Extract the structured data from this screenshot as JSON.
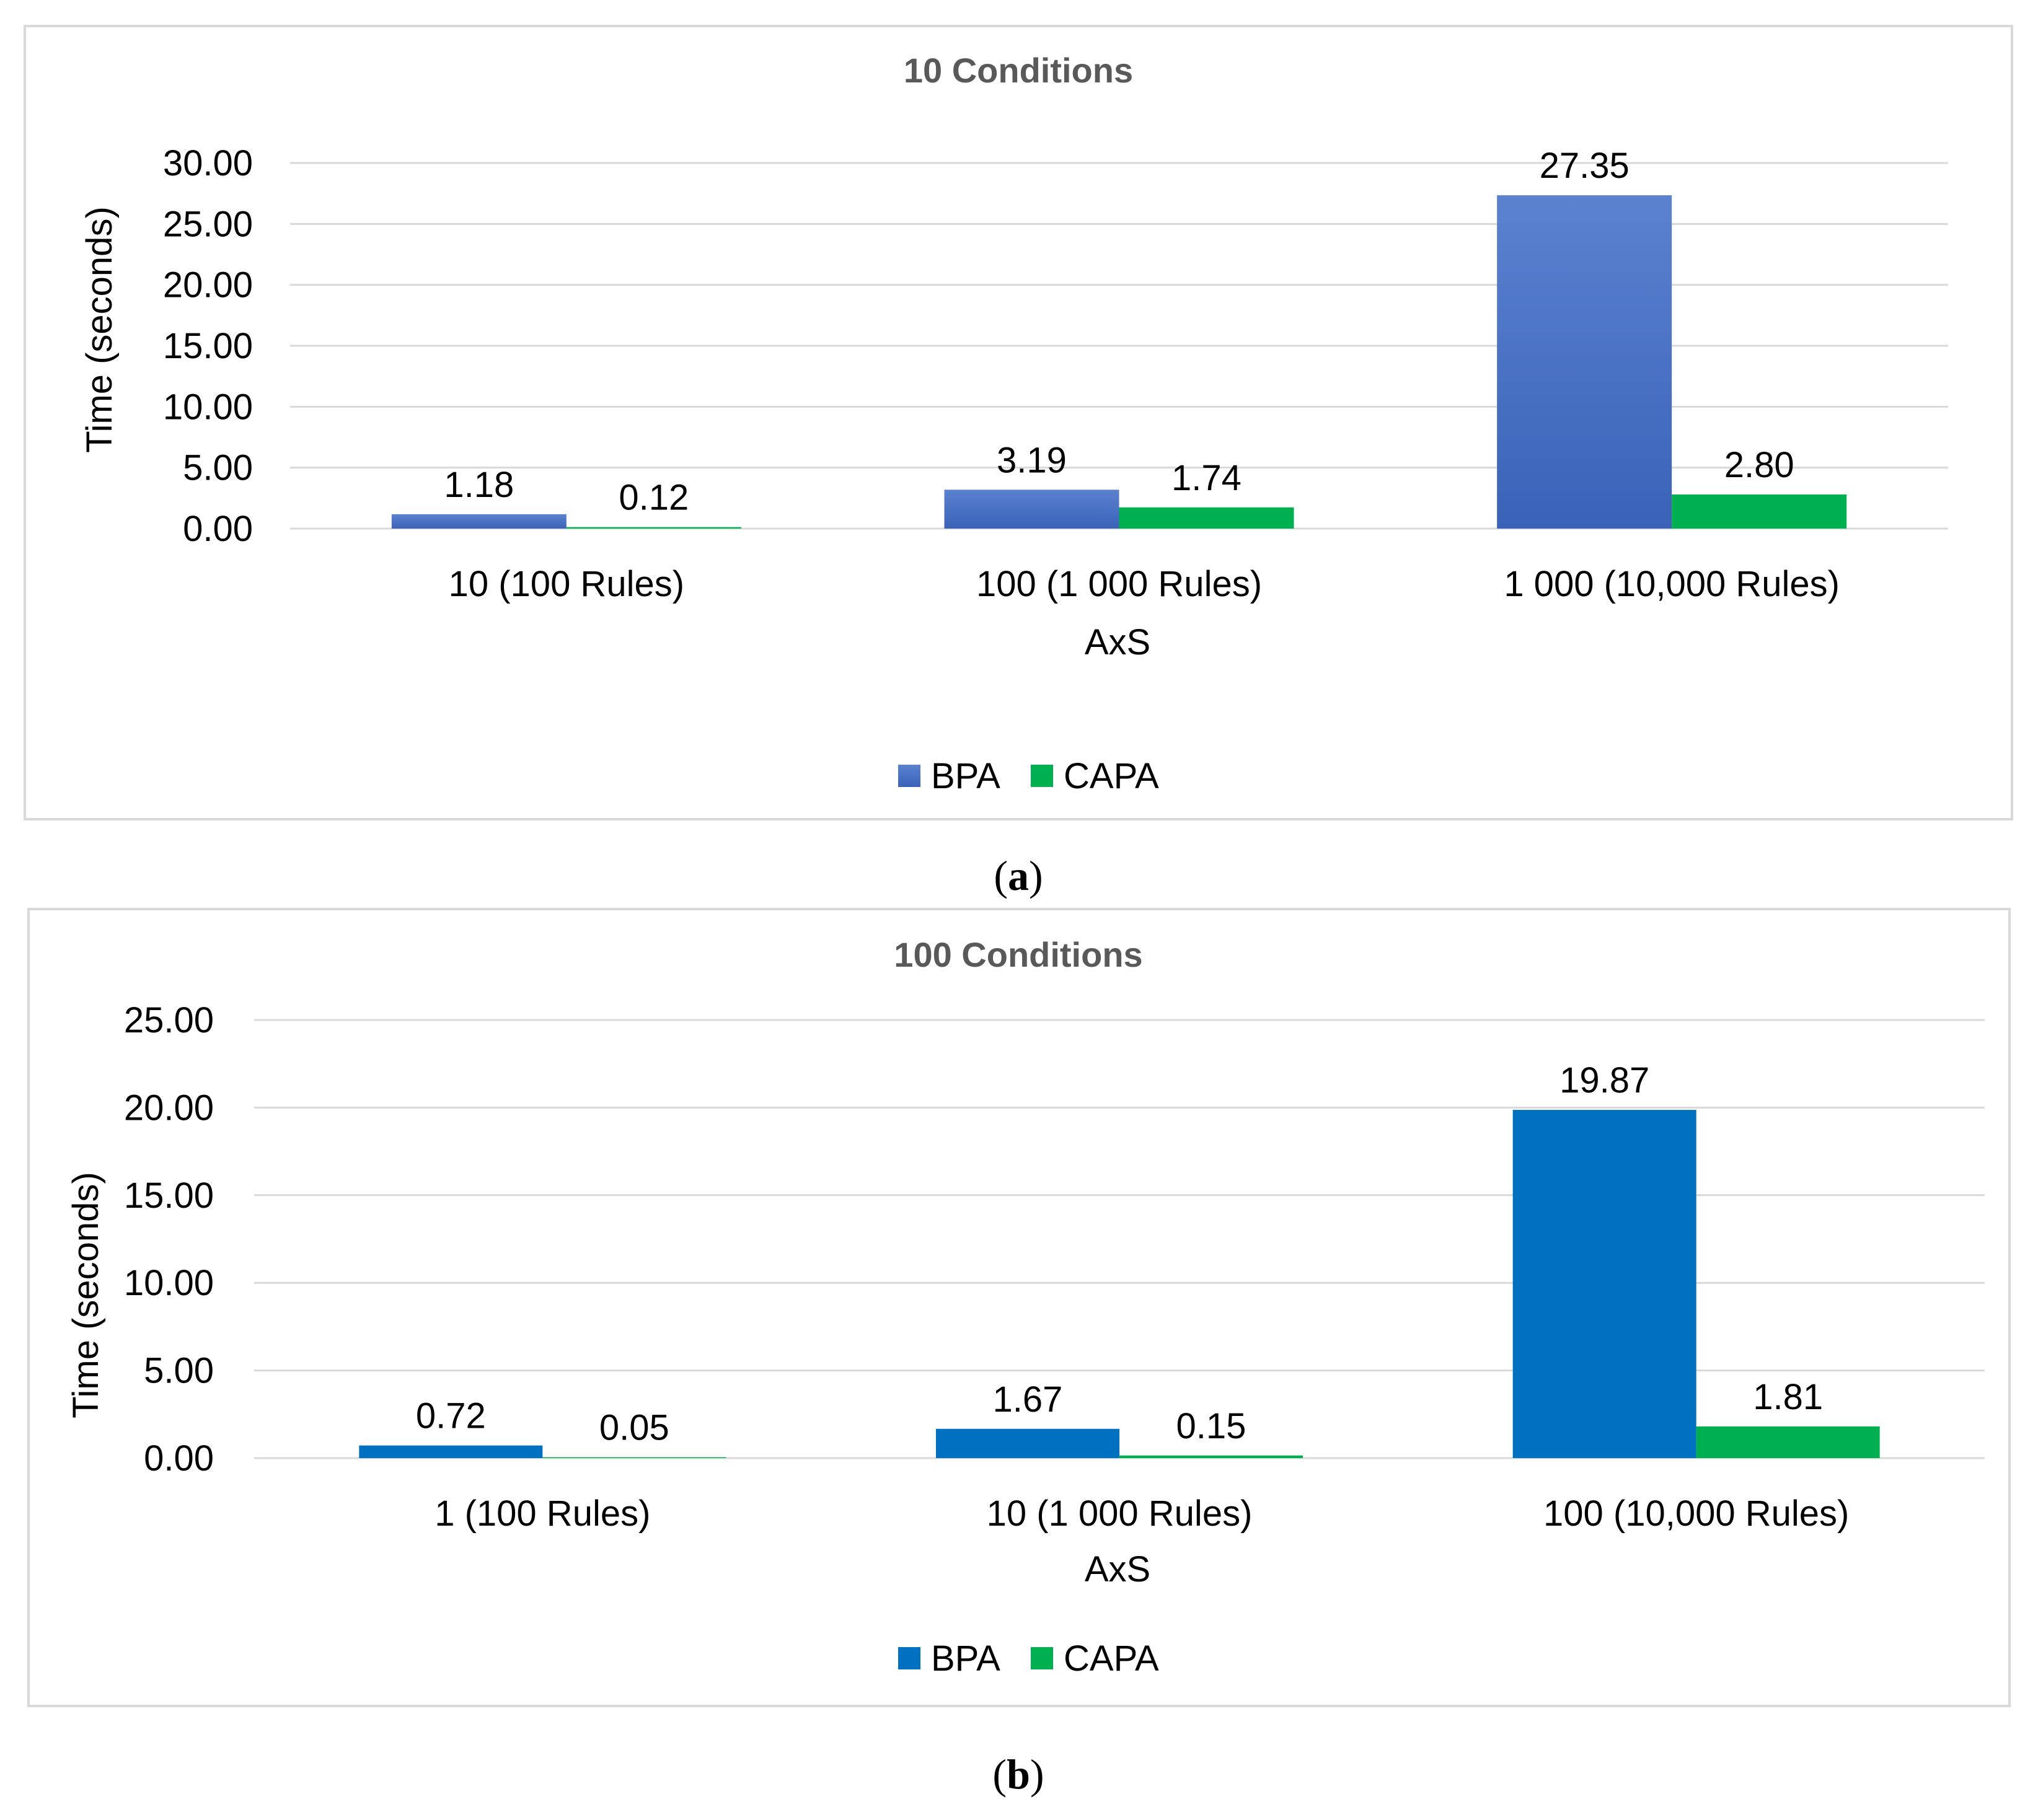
{
  "colors": {
    "bpa_a_top": "#5b82cf",
    "bpa_a_bottom": "#3a62b8",
    "bpa_b": "#0070c0",
    "capa": "#00b050"
  },
  "chart_data": [
    {
      "type": "bar",
      "title": "10 Conditions",
      "xlabel": "AxS",
      "ylabel": "Time (seconds)",
      "ylim": [
        0,
        30
      ],
      "yticks": [
        "0.00",
        "5.00",
        "10.00",
        "15.00",
        "20.00",
        "25.00",
        "30.00"
      ],
      "categories": [
        "10 (100 Rules)",
        "100 (1 000 Rules)",
        "1 000 (10,000 Rules)"
      ],
      "series": [
        {
          "name": "BPA",
          "values": [
            1.18,
            3.19,
            27.35
          ],
          "labels": [
            "1.18",
            "3.19",
            "27.35"
          ]
        },
        {
          "name": "CAPA",
          "values": [
            0.12,
            1.74,
            2.8
          ],
          "labels": [
            "0.12",
            "1.74",
            "2.80"
          ]
        }
      ],
      "legend": "bottom",
      "caption_letter": "a"
    },
    {
      "type": "bar",
      "title": "100 Conditions",
      "xlabel": "AxS",
      "ylabel": "Time (seconds)",
      "ylim": [
        0,
        25
      ],
      "yticks": [
        "0.00",
        "5.00",
        "10.00",
        "15.00",
        "20.00",
        "25.00"
      ],
      "categories": [
        "1 (100 Rules)",
        "10 (1 000 Rules)",
        "100 (10,000 Rules)"
      ],
      "series": [
        {
          "name": "BPA",
          "values": [
            0.72,
            1.67,
            19.87
          ],
          "labels": [
            "0.72",
            "1.67",
            "19.87"
          ]
        },
        {
          "name": "CAPA",
          "values": [
            0.05,
            0.15,
            1.81
          ],
          "labels": [
            "0.05",
            "0.15",
            "1.81"
          ]
        }
      ],
      "legend": "bottom",
      "caption_letter": "b"
    }
  ]
}
